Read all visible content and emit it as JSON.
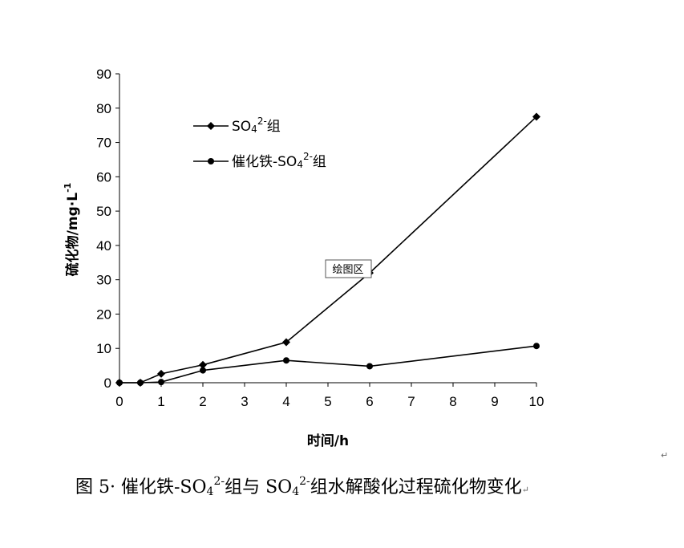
{
  "chart_data": {
    "type": "line",
    "xlabel": "时间/h",
    "ylabel": "硫化物/mg·L",
    "ylabel_sup": "-1",
    "x_ticks": [
      "0",
      "1",
      "2",
      "3",
      "4",
      "5",
      "6",
      "7",
      "8",
      "9",
      "10"
    ],
    "y_ticks": [
      "0",
      "10",
      "20",
      "30",
      "40",
      "50",
      "60",
      "70",
      "80",
      "90"
    ],
    "xlim": [
      0,
      10
    ],
    "ylim": [
      0,
      90
    ],
    "grid": false,
    "legend_position": "top-left",
    "series": [
      {
        "name_prefix": "SO",
        "name_sub": "4",
        "name_sup": "2-",
        "name_suffix": "组",
        "marker": "diamond",
        "x": [
          0,
          0.5,
          1,
          2,
          4,
          6,
          10
        ],
        "y": [
          0,
          0,
          2.6,
          5.2,
          11.8,
          32,
          77.5
        ]
      },
      {
        "name_prefix": "催化铁-SO",
        "name_sub": "4",
        "name_sup": "2-",
        "name_suffix": "组",
        "marker": "circle",
        "x": [
          0,
          0.5,
          1,
          2,
          4,
          6,
          10
        ],
        "y": [
          0,
          0,
          0.2,
          3.6,
          6.5,
          4.8,
          10.7
        ]
      }
    ],
    "tooltip": "绘图区",
    "line_color": "#000000"
  },
  "caption": {
    "part1": "图 5· 催化铁-SO",
    "sub1": "4",
    "sup1": "2-",
    "part2": "组与 SO",
    "sub2": "4",
    "sup2": "2-",
    "part3": "组水解酸化过程硫化物变化"
  },
  "paragraph_mark": "↵"
}
